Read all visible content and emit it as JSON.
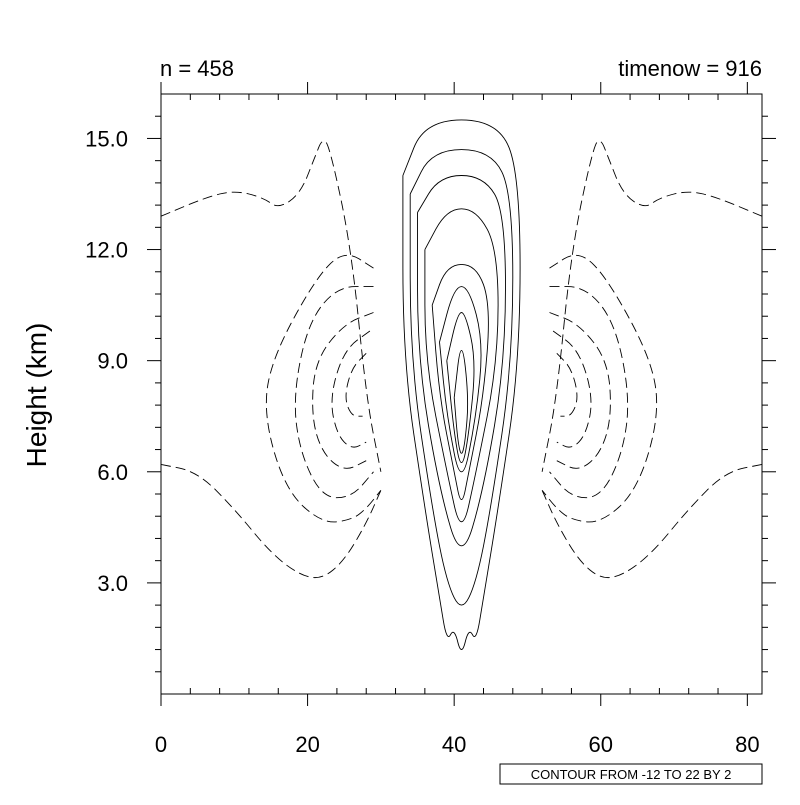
{
  "header": {
    "left": "n = 458",
    "right": "timenow = 916"
  },
  "info_label": "CONTOUR FROM -12 TO 22 BY 2",
  "chart_data": {
    "type": "contour",
    "ylabel": "Height (km)",
    "xlabel": "",
    "xlim": [
      0,
      82
    ],
    "ylim": [
      0,
      16.2
    ],
    "x_ticks": [
      0,
      20,
      40,
      60,
      80
    ],
    "x_tick_labels": [
      "0",
      "20",
      "40",
      "60",
      "80"
    ],
    "y_ticks": [
      3,
      6,
      9,
      12,
      15
    ],
    "y_tick_labels": [
      "3.0",
      "6.0",
      "9.0",
      "12.0",
      "15.0"
    ],
    "contour_levels": {
      "min": -12,
      "max": 22,
      "step": 2
    },
    "line_styles": {
      "positive": "solid",
      "negative": "dashed"
    },
    "contours": [
      {
        "sign": "pos",
        "points": [
          [
            33,
            14
          ],
          [
            33,
            9
          ],
          [
            36,
            5
          ],
          [
            38,
            2.6
          ],
          [
            39,
            1.4
          ],
          [
            40,
            1.8
          ],
          [
            41,
            1
          ],
          [
            42,
            1.8
          ],
          [
            43,
            1.4
          ],
          [
            44,
            2.6
          ],
          [
            46,
            5
          ],
          [
            49,
            9
          ],
          [
            49,
            14
          ],
          [
            46,
            15.5
          ],
          [
            36,
            15.5
          ],
          [
            33,
            14
          ]
        ]
      },
      {
        "sign": "pos",
        "points": [
          [
            34,
            13.5
          ],
          [
            34,
            9
          ],
          [
            37,
            5
          ],
          [
            39,
            3
          ],
          [
            41,
            2.2
          ],
          [
            43,
            3
          ],
          [
            45,
            5
          ],
          [
            48,
            9
          ],
          [
            48,
            13.5
          ],
          [
            45,
            14.7
          ],
          [
            37,
            14.7
          ],
          [
            34,
            13.5
          ]
        ]
      },
      {
        "sign": "pos",
        "points": [
          [
            35,
            13
          ],
          [
            35,
            9
          ],
          [
            38,
            5.5
          ],
          [
            41,
            3.5
          ],
          [
            44,
            5.5
          ],
          [
            47,
            9
          ],
          [
            47,
            13
          ],
          [
            44,
            14
          ],
          [
            38,
            14
          ],
          [
            35,
            13
          ]
        ]
      },
      {
        "sign": "pos",
        "points": [
          [
            36,
            12
          ],
          [
            36,
            9
          ],
          [
            39,
            6
          ],
          [
            41,
            4.2
          ],
          [
            43,
            6
          ],
          [
            46,
            9
          ],
          [
            46,
            12
          ],
          [
            43,
            13.1
          ],
          [
            39,
            13.1
          ],
          [
            36,
            12
          ]
        ]
      },
      {
        "sign": "pos",
        "points": [
          [
            37,
            10.5
          ],
          [
            38,
            8
          ],
          [
            40,
            6
          ],
          [
            41,
            5
          ],
          [
            42,
            6
          ],
          [
            44,
            8
          ],
          [
            45,
            10.5
          ],
          [
            43,
            11.6
          ],
          [
            39,
            11.6
          ],
          [
            37,
            10.5
          ]
        ]
      },
      {
        "sign": "pos",
        "points": [
          [
            38,
            9.5
          ],
          [
            39,
            7.5
          ],
          [
            41,
            5.5
          ],
          [
            43,
            7.5
          ],
          [
            44,
            9.5
          ],
          [
            42,
            11
          ],
          [
            40,
            11
          ],
          [
            38,
            9.5
          ]
        ]
      },
      {
        "sign": "pos",
        "points": [
          [
            39,
            9
          ],
          [
            40,
            7
          ],
          [
            41,
            6
          ],
          [
            42,
            7
          ],
          [
            43,
            9
          ],
          [
            41.5,
            10.3
          ],
          [
            40.5,
            10.3
          ],
          [
            39,
            9
          ]
        ]
      },
      {
        "sign": "pos",
        "points": [
          [
            40,
            8
          ],
          [
            40.5,
            6.8
          ],
          [
            41,
            6.4
          ],
          [
            41.5,
            6.8
          ],
          [
            42,
            8
          ],
          [
            41,
            9.7
          ],
          [
            40,
            8
          ]
        ]
      },
      {
        "sign": "neg",
        "points": [
          [
            0,
            12.9
          ],
          [
            6,
            13.4
          ],
          [
            10,
            13.6
          ],
          [
            14,
            13.4
          ],
          [
            16,
            13.1
          ],
          [
            19,
            13.5
          ],
          [
            21,
            14.5
          ],
          [
            22,
            15
          ],
          [
            23,
            14.8
          ],
          [
            26,
            12
          ],
          [
            28,
            8
          ],
          [
            30,
            6
          ]
        ]
      },
      {
        "sign": "neg",
        "points": [
          [
            82,
            12.9
          ],
          [
            76,
            13.4
          ],
          [
            72,
            13.6
          ],
          [
            68,
            13.4
          ],
          [
            66,
            13.1
          ],
          [
            63,
            13.5
          ],
          [
            61,
            14.5
          ],
          [
            60,
            15
          ],
          [
            59,
            14.8
          ],
          [
            56,
            12
          ],
          [
            54,
            8
          ],
          [
            52,
            6
          ]
        ]
      },
      {
        "sign": "neg",
        "points": [
          [
            0,
            6.2
          ],
          [
            5,
            6
          ],
          [
            10,
            5
          ],
          [
            15,
            3.8
          ],
          [
            19,
            3.2
          ],
          [
            22,
            3.1
          ],
          [
            25,
            3.6
          ],
          [
            28,
            4.6
          ],
          [
            30,
            5.5
          ]
        ]
      },
      {
        "sign": "neg",
        "points": [
          [
            82,
            6.2
          ],
          [
            77,
            6
          ],
          [
            72,
            5
          ],
          [
            67,
            3.8
          ],
          [
            63,
            3.2
          ],
          [
            60,
            3.1
          ],
          [
            57,
            3.6
          ],
          [
            54,
            4.6
          ],
          [
            52,
            5.5
          ]
        ]
      },
      {
        "sign": "neg",
        "points": [
          [
            29,
            11.5
          ],
          [
            25,
            12
          ],
          [
            21,
            11.2
          ],
          [
            15,
            9
          ],
          [
            14,
            7.5
          ],
          [
            17,
            5.5
          ],
          [
            22,
            4.6
          ],
          [
            26,
            4.7
          ],
          [
            28,
            5
          ],
          [
            30,
            5.5
          ]
        ]
      },
      {
        "sign": "neg",
        "points": [
          [
            29,
            11
          ],
          [
            24,
            11
          ],
          [
            20,
            10
          ],
          [
            18,
            8
          ],
          [
            19,
            6.5
          ],
          [
            22,
            5.3
          ],
          [
            26,
            5.3
          ],
          [
            29,
            6
          ]
        ]
      },
      {
        "sign": "neg",
        "points": [
          [
            29,
            10.3
          ],
          [
            25,
            10
          ],
          [
            21,
            9
          ],
          [
            20.5,
            7.5
          ],
          [
            22,
            6.5
          ],
          [
            25,
            6
          ],
          [
            28,
            6.3
          ]
        ]
      },
      {
        "sign": "neg",
        "points": [
          [
            28.5,
            9.8
          ],
          [
            25,
            9.3
          ],
          [
            23,
            8
          ],
          [
            24,
            7
          ],
          [
            26,
            6.6
          ],
          [
            28,
            6.8
          ]
        ]
      },
      {
        "sign": "neg",
        "points": [
          [
            28,
            9.2
          ],
          [
            26,
            8.8
          ],
          [
            25,
            8
          ],
          [
            26,
            7.5
          ],
          [
            27.5,
            7.5
          ]
        ]
      },
      {
        "sign": "neg",
        "points": [
          [
            53,
            11.5
          ],
          [
            57,
            12
          ],
          [
            61,
            11.2
          ],
          [
            67,
            9
          ],
          [
            68,
            7.5
          ],
          [
            65,
            5.5
          ],
          [
            60,
            4.6
          ],
          [
            56,
            4.7
          ],
          [
            54,
            5
          ],
          [
            52,
            5.5
          ]
        ]
      },
      {
        "sign": "neg",
        "points": [
          [
            53,
            11
          ],
          [
            58,
            11
          ],
          [
            62,
            10
          ],
          [
            64,
            8
          ],
          [
            63,
            6.5
          ],
          [
            60,
            5.3
          ],
          [
            56,
            5.3
          ],
          [
            53,
            6
          ]
        ]
      },
      {
        "sign": "neg",
        "points": [
          [
            53,
            10.3
          ],
          [
            57,
            10
          ],
          [
            61,
            9
          ],
          [
            61.5,
            7.5
          ],
          [
            60,
            6.5
          ],
          [
            57,
            6
          ],
          [
            54,
            6.3
          ]
        ]
      },
      {
        "sign": "neg",
        "points": [
          [
            53.5,
            9.8
          ],
          [
            57,
            9.3
          ],
          [
            59,
            8
          ],
          [
            58,
            7
          ],
          [
            56,
            6.6
          ],
          [
            54,
            6.8
          ]
        ]
      },
      {
        "sign": "neg",
        "points": [
          [
            54,
            9.2
          ],
          [
            56,
            8.8
          ],
          [
            57,
            8
          ],
          [
            56,
            7.5
          ],
          [
            54.5,
            7.5
          ]
        ]
      }
    ]
  }
}
